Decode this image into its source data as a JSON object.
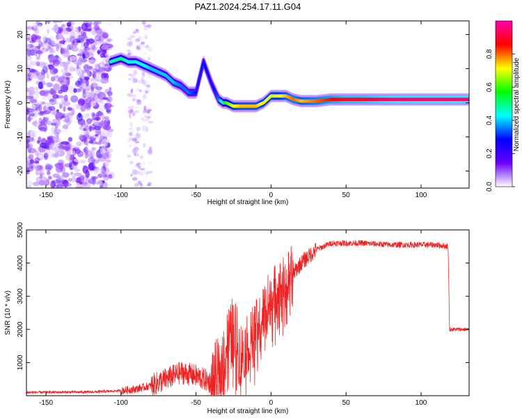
{
  "title": "PAZ1.2024.254.17.11.G04",
  "chart_data": [
    {
      "type": "heatmap",
      "xlabel": "Height of straight line (km)",
      "ylabel": "Frequency (Hz)",
      "xlim": [
        -163,
        132
      ],
      "ylim": [
        -25,
        24
      ],
      "x_ticks": [
        -150,
        -100,
        -50,
        0,
        50,
        100
      ],
      "y_ticks": [
        -20,
        -10,
        0,
        10,
        20
      ],
      "colorbar": {
        "label": "Normalized spectral amplitude",
        "range": [
          0,
          1
        ],
        "ticks": [
          "0.0",
          "0.2",
          "0.4",
          "0.6",
          "0.8"
        ],
        "colors": [
          "#ffffff",
          "#6a00ff",
          "#0000ff",
          "#00ffff",
          "#00ff00",
          "#ffff00",
          "#ff0000",
          "#ff00aa"
        ]
      },
      "ridge": {
        "x": [
          -107,
          -100,
          -95,
          -90,
          -85,
          -80,
          -75,
          -70,
          -65,
          -60,
          -55,
          -50,
          -45,
          -40,
          -35,
          -32,
          -30,
          -25,
          -20,
          -15,
          -10,
          -5,
          0,
          5,
          10,
          15,
          20,
          30,
          40,
          50,
          60,
          80,
          100,
          120,
          132
        ],
        "y": [
          12,
          13,
          12,
          12,
          11,
          10,
          9,
          8,
          6,
          5,
          3,
          3,
          12,
          6,
          1,
          0,
          0,
          -1,
          -1,
          -1,
          -1,
          0,
          2,
          2,
          2,
          1,
          0.5,
          0.5,
          1,
          1,
          1,
          1,
          1,
          1,
          1
        ],
        "amplitude": [
          0.45,
          0.5,
          0.45,
          0.45,
          0.45,
          0.4,
          0.4,
          0.4,
          0.4,
          0.35,
          0.35,
          0.3,
          0.3,
          0.25,
          0.35,
          0.5,
          0.6,
          0.7,
          0.75,
          0.75,
          0.75,
          0.7,
          0.7,
          0.7,
          0.75,
          0.8,
          0.75,
          0.8,
          0.85,
          0.9,
          0.9,
          0.95,
          0.95,
          0.95,
          0.95
        ]
      },
      "noise_region_km": [
        -163,
        -107
      ]
    },
    {
      "type": "line",
      "xlabel": "Height of straight line (km)",
      "ylabel": "SNR (10 * v/v)",
      "xlim": [
        -163,
        132
      ],
      "ylim": [
        0,
        5000
      ],
      "x_ticks": [
        -150,
        -100,
        -50,
        0,
        50,
        100
      ],
      "y_ticks": [
        1000,
        2000,
        3000,
        4000,
        5000
      ],
      "color": "#ee2222",
      "series": [
        {
          "x": [
            -163,
            -120,
            -100,
            -90,
            -80,
            -70,
            -60,
            -50,
            -40,
            -35,
            -30,
            -25,
            -20,
            -10,
            0,
            10,
            20,
            30,
            40,
            50,
            60,
            80,
            100,
            110,
            118,
            119,
            125,
            132
          ],
          "y": [
            100,
            110,
            150,
            200,
            300,
            500,
            700,
            600,
            400,
            700,
            1500,
            2000,
            1200,
            2000,
            3000,
            3400,
            4000,
            4400,
            4600,
            4600,
            4600,
            4550,
            4550,
            4550,
            4500,
            2000,
            2000,
            2000
          ]
        }
      ]
    }
  ]
}
